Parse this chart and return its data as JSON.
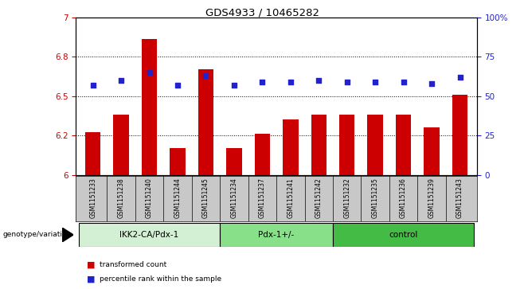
{
  "title": "GDS4933 / 10465282",
  "samples": [
    "GSM1151233",
    "GSM1151238",
    "GSM1151240",
    "GSM1151244",
    "GSM1151245",
    "GSM1151234",
    "GSM1151237",
    "GSM1151241",
    "GSM1151242",
    "GSM1151232",
    "GSM1151235",
    "GSM1151236",
    "GSM1151239",
    "GSM1151243"
  ],
  "red_values": [
    6.27,
    6.38,
    6.86,
    6.17,
    6.67,
    6.17,
    6.26,
    6.35,
    6.38,
    6.38,
    6.38,
    6.38,
    6.3,
    6.51
  ],
  "blue_values_pct": [
    57,
    60,
    65,
    57,
    63,
    57,
    59,
    59,
    60,
    59,
    59,
    59,
    58,
    62
  ],
  "groups": [
    {
      "label": "IKK2-CA/Pdx-1",
      "start": 0,
      "end": 5,
      "color": "#d4f0d4"
    },
    {
      "label": "Pdx-1+/-",
      "start": 5,
      "end": 9,
      "color": "#88e088"
    },
    {
      "label": "control",
      "start": 9,
      "end": 14,
      "color": "#44bb44"
    }
  ],
  "ylim_left": [
    6.0,
    7.0
  ],
  "ylim_right": [
    0,
    100
  ],
  "yticks_left": [
    6.0,
    6.25,
    6.5,
    6.75,
    7.0
  ],
  "yticks_right": [
    0,
    25,
    50,
    75,
    100
  ],
  "hlines": [
    6.25,
    6.5,
    6.75
  ],
  "bar_color": "#cc0000",
  "dot_color": "#2222cc",
  "legend_red": "transformed count",
  "legend_blue": "percentile rank within the sample",
  "genotype_label": "genotype/variation"
}
